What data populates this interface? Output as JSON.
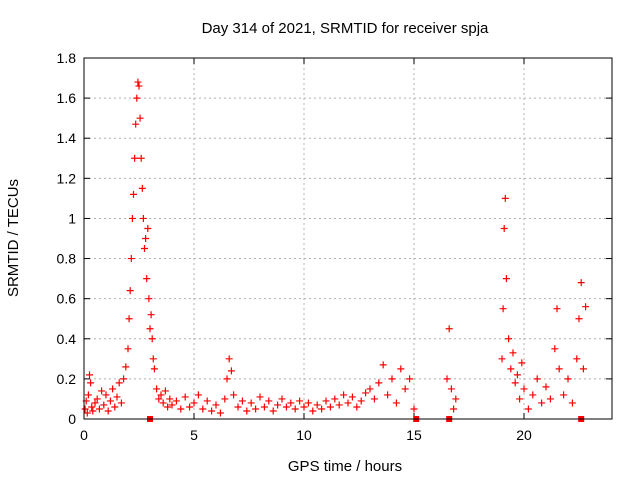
{
  "chart_data": {
    "type": "scatter",
    "title": "Day 314 of 2021, SRMTID for receiver spja",
    "xlabel": "GPS time / hours",
    "ylabel": "SRMTID / TECUs",
    "xlim": [
      0,
      24
    ],
    "ylim": [
      0,
      1.8
    ],
    "xticks": [
      0,
      5,
      10,
      15,
      20
    ],
    "yticks": [
      0,
      0.2,
      0.4,
      0.6,
      0.8,
      1.0,
      1.2,
      1.4,
      1.6,
      1.8
    ],
    "xtick_labels": [
      "0",
      "5",
      "10",
      "15",
      "20"
    ],
    "ytick_labels": [
      "0",
      "0.2",
      "0.4",
      "0.6",
      "0.8",
      "1",
      "1.2",
      "1.4",
      "1.6",
      "1.8"
    ],
    "grid": true,
    "marker": "+",
    "color": "#ff0000",
    "series": [
      {
        "name": "SRMTID",
        "points": [
          [
            0.05,
            0.05
          ],
          [
            0.1,
            0.09
          ],
          [
            0.15,
            0.03
          ],
          [
            0.2,
            0.12
          ],
          [
            0.25,
            0.22
          ],
          [
            0.3,
            0.18
          ],
          [
            0.35,
            0.06
          ],
          [
            0.4,
            0.04
          ],
          [
            0.5,
            0.08
          ],
          [
            0.6,
            0.1
          ],
          [
            0.7,
            0.05
          ],
          [
            0.8,
            0.14
          ],
          [
            0.9,
            0.07
          ],
          [
            1.0,
            0.12
          ],
          [
            1.1,
            0.04
          ],
          [
            1.2,
            0.09
          ],
          [
            1.3,
            0.15
          ],
          [
            1.4,
            0.06
          ],
          [
            1.5,
            0.11
          ],
          [
            1.6,
            0.18
          ],
          [
            1.7,
            0.08
          ],
          [
            1.8,
            0.2
          ],
          [
            1.9,
            0.26
          ],
          [
            2.0,
            0.35
          ],
          [
            2.05,
            0.5
          ],
          [
            2.1,
            0.64
          ],
          [
            2.15,
            0.8
          ],
          [
            2.2,
            1.0
          ],
          [
            2.25,
            1.12
          ],
          [
            2.3,
            1.3
          ],
          [
            2.35,
            1.47
          ],
          [
            2.4,
            1.6
          ],
          [
            2.45,
            1.68
          ],
          [
            2.5,
            1.66
          ],
          [
            2.55,
            1.5
          ],
          [
            2.6,
            1.3
          ],
          [
            2.65,
            1.15
          ],
          [
            2.7,
            1.0
          ],
          [
            2.75,
            0.85
          ],
          [
            2.8,
            0.9
          ],
          [
            2.85,
            0.7
          ],
          [
            2.9,
            0.95
          ],
          [
            2.95,
            0.6
          ],
          [
            3.0,
            0.45
          ],
          [
            3.05,
            0.52
          ],
          [
            3.1,
            0.4
          ],
          [
            3.15,
            0.3
          ],
          [
            3.2,
            0.25
          ],
          [
            3.3,
            0.15
          ],
          [
            3.4,
            0.1
          ],
          [
            3.5,
            0.12
          ],
          [
            3.6,
            0.08
          ],
          [
            3.7,
            0.14
          ],
          [
            3.8,
            0.06
          ],
          [
            3.9,
            0.1
          ],
          [
            4.0,
            0.07
          ],
          [
            4.2,
            0.09
          ],
          [
            4.4,
            0.05
          ],
          [
            4.6,
            0.11
          ],
          [
            4.8,
            0.06
          ],
          [
            5.0,
            0.08
          ],
          [
            5.2,
            0.12
          ],
          [
            5.4,
            0.05
          ],
          [
            5.6,
            0.09
          ],
          [
            5.8,
            0.04
          ],
          [
            6.0,
            0.07
          ],
          [
            6.2,
            0.03
          ],
          [
            6.4,
            0.1
          ],
          [
            6.5,
            0.2
          ],
          [
            6.6,
            0.3
          ],
          [
            6.7,
            0.24
          ],
          [
            6.8,
            0.12
          ],
          [
            7.0,
            0.06
          ],
          [
            7.2,
            0.09
          ],
          [
            7.4,
            0.04
          ],
          [
            7.6,
            0.08
          ],
          [
            7.8,
            0.05
          ],
          [
            8.0,
            0.11
          ],
          [
            8.2,
            0.06
          ],
          [
            8.4,
            0.09
          ],
          [
            8.6,
            0.04
          ],
          [
            8.8,
            0.07
          ],
          [
            9.0,
            0.1
          ],
          [
            9.2,
            0.06
          ],
          [
            9.4,
            0.08
          ],
          [
            9.6,
            0.05
          ],
          [
            9.8,
            0.09
          ],
          [
            10.0,
            0.06
          ],
          [
            10.2,
            0.08
          ],
          [
            10.4,
            0.04
          ],
          [
            10.6,
            0.07
          ],
          [
            10.8,
            0.05
          ],
          [
            11.0,
            0.09
          ],
          [
            11.2,
            0.06
          ],
          [
            11.4,
            0.1
          ],
          [
            11.6,
            0.07
          ],
          [
            11.8,
            0.12
          ],
          [
            12.0,
            0.08
          ],
          [
            12.2,
            0.11
          ],
          [
            12.4,
            0.06
          ],
          [
            12.6,
            0.09
          ],
          [
            12.8,
            0.13
          ],
          [
            13.0,
            0.15
          ],
          [
            13.2,
            0.1
          ],
          [
            13.4,
            0.18
          ],
          [
            13.6,
            0.27
          ],
          [
            13.8,
            0.12
          ],
          [
            14.0,
            0.2
          ],
          [
            14.2,
            0.08
          ],
          [
            14.4,
            0.25
          ],
          [
            14.6,
            0.15
          ],
          [
            14.8,
            0.2
          ],
          [
            15.0,
            0.05
          ],
          [
            16.5,
            0.2
          ],
          [
            16.6,
            0.45
          ],
          [
            16.7,
            0.15
          ],
          [
            16.8,
            0.05
          ],
          [
            16.9,
            0.1
          ],
          [
            19.0,
            0.3
          ],
          [
            19.05,
            0.55
          ],
          [
            19.1,
            0.95
          ],
          [
            19.15,
            1.1
          ],
          [
            19.2,
            0.7
          ],
          [
            19.3,
            0.4
          ],
          [
            19.4,
            0.25
          ],
          [
            19.5,
            0.33
          ],
          [
            19.6,
            0.18
          ],
          [
            19.7,
            0.22
          ],
          [
            19.8,
            0.1
          ],
          [
            19.9,
            0.28
          ],
          [
            20.0,
            0.15
          ],
          [
            20.2,
            0.05
          ],
          [
            20.4,
            0.12
          ],
          [
            20.6,
            0.2
          ],
          [
            20.8,
            0.08
          ],
          [
            21.0,
            0.16
          ],
          [
            21.2,
            0.1
          ],
          [
            21.4,
            0.35
          ],
          [
            21.5,
            0.55
          ],
          [
            21.6,
            0.25
          ],
          [
            21.8,
            0.12
          ],
          [
            22.0,
            0.2
          ],
          [
            22.2,
            0.08
          ],
          [
            22.4,
            0.3
          ],
          [
            22.5,
            0.5
          ],
          [
            22.6,
            0.68
          ],
          [
            22.7,
            0.25
          ],
          [
            22.8,
            0.56
          ]
        ]
      }
    ],
    "axis_markers": [
      [
        3.0,
        0.0
      ],
      [
        15.1,
        0.0
      ],
      [
        16.6,
        0.0
      ],
      [
        22.6,
        0.0
      ]
    ]
  }
}
